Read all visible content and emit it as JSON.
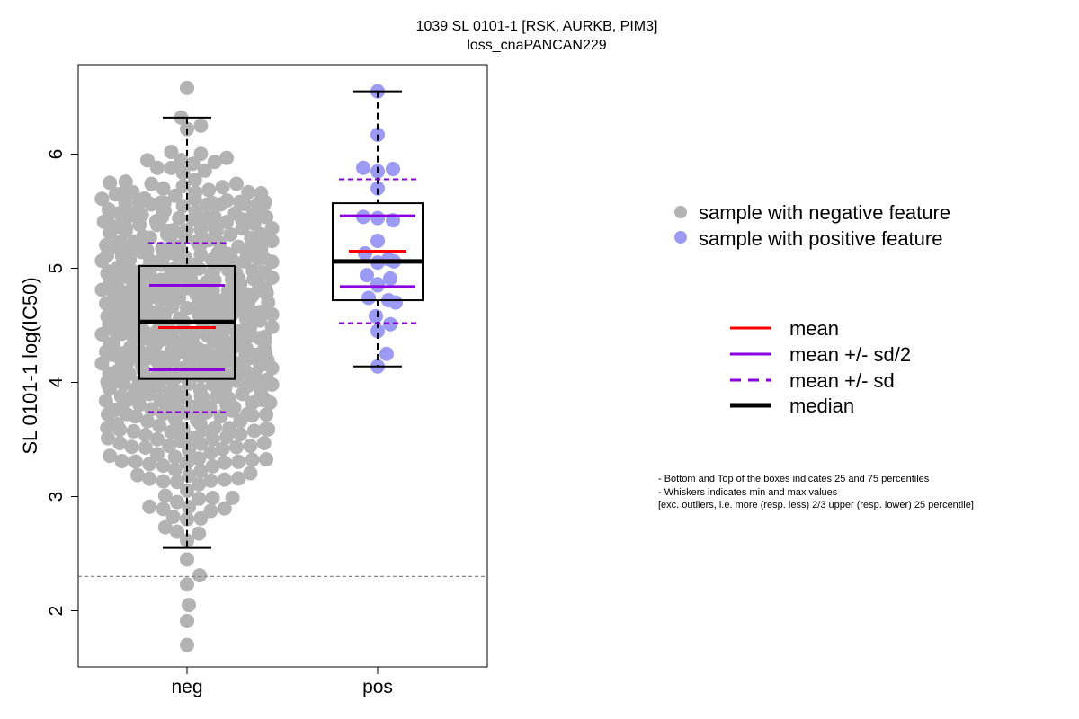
{
  "chart_data": {
    "type": "scatter",
    "title": "1039 SL 0101-1 [RSK, AURKB, PIM3]",
    "subtitle": "loss_cnaPANCAN229",
    "xlabel": "",
    "ylabel": "SL 0101-1 log(IC50)",
    "categories": [
      "neg",
      "pos"
    ],
    "yticks": [
      2,
      3,
      4,
      5,
      6
    ],
    "ylim": [
      1.5,
      6.75
    ],
    "threshold": 2.3,
    "colors": {
      "neg": "#b3b3b3",
      "pos": "#9b9bf5",
      "mean": "#ff0000",
      "sd": "#8b00e0",
      "median": "#000000",
      "threshold": "#888888"
    },
    "groups": [
      {
        "name": "neg",
        "n": 640,
        "min": 2.55,
        "q1": 4.03,
        "median": 4.53,
        "q3": 5.02,
        "max": 6.32,
        "mean": 4.48,
        "mean_minus_half_sd": 4.11,
        "mean_plus_half_sd": 4.85,
        "mean_minus_sd": 3.74,
        "mean_plus_sd": 5.22,
        "outliers": [
          6.58,
          2.45,
          2.31,
          2.23,
          2.05,
          1.91,
          1.7
        ]
      },
      {
        "name": "pos",
        "n": 26,
        "min": 4.14,
        "q1": 4.72,
        "median": 5.06,
        "q3": 5.57,
        "max": 6.55,
        "mean": 5.15,
        "mean_minus_half_sd": 4.84,
        "mean_plus_half_sd": 5.46,
        "mean_minus_sd": 4.52,
        "mean_plus_sd": 5.78,
        "values": [
          6.55,
          6.17,
          5.88,
          5.85,
          5.87,
          5.7,
          5.45,
          5.42,
          5.44,
          5.24,
          5.13,
          5.08,
          5.05,
          5.06,
          4.94,
          4.91,
          4.86,
          4.85,
          4.74,
          4.72,
          4.7,
          4.58,
          4.51,
          4.45,
          4.25,
          4.14
        ]
      }
    ],
    "legend": {
      "placement": "right",
      "points": [
        {
          "label": "sample with negative feature",
          "color": "#b3b3b3"
        },
        {
          "label": "sample with positive feature",
          "color": "#9b9bf5"
        }
      ],
      "lines": [
        {
          "label": "mean",
          "style": "solid",
          "color": "#ff0000"
        },
        {
          "label": "mean +/- sd/2",
          "style": "solid",
          "color": "#8b00e0"
        },
        {
          "label": "mean +/- sd",
          "style": "dashed",
          "color": "#8b00e0"
        },
        {
          "label": "median",
          "style": "thick",
          "color": "#000000"
        }
      ]
    },
    "notes": [
      "- Bottom and Top of the boxes indicates 25 and 75 percentiles",
      "- Whiskers indicates min and max values",
      "[exc. outliers, i.e. more (resp. less) 2/3 upper (resp. lower) 25 percentile]"
    ]
  }
}
